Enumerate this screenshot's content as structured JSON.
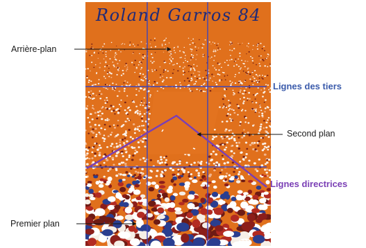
{
  "artwork": {
    "signature_text": "Roland Garros 84"
  },
  "labels": {
    "arriere_plan": "Arrière-plan",
    "premier_plan": "Premier plan",
    "second_plan": "Second plan",
    "lignes_tiers": "Lignes des tiers",
    "lignes_directrices": "Lignes directrices"
  },
  "colors": {
    "background_orange": "#e0701c",
    "court_orange": "#e3731f",
    "thirds_lines": "#3f44b8",
    "leading_lines": "#7a3fb5",
    "label_blue": "#3b5bab",
    "label_purple": "#7a3fb5"
  }
}
